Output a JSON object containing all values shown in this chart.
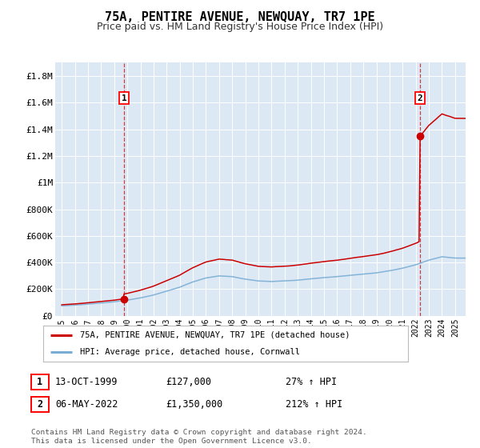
{
  "title": "75A, PENTIRE AVENUE, NEWQUAY, TR7 1PE",
  "subtitle": "Price paid vs. HM Land Registry's House Price Index (HPI)",
  "title_fontsize": 11,
  "subtitle_fontsize": 9,
  "fig_bg_color": "#ffffff",
  "plot_bg_color": "#dce9f5",
  "sale1_year": 1999.79,
  "sale1_price": 127000,
  "sale2_year": 2022.37,
  "sale2_price": 1350000,
  "ylim": [
    0,
    1900000
  ],
  "xlim_start": 1994.5,
  "xlim_end": 2025.8,
  "legend_label_red": "75A, PENTIRE AVENUE, NEWQUAY, TR7 1PE (detached house)",
  "legend_label_blue": "HPI: Average price, detached house, Cornwall",
  "annotation1_date": "13-OCT-1999",
  "annotation1_price": "£127,000",
  "annotation1_hpi": "27% ↑ HPI",
  "annotation2_date": "06-MAY-2022",
  "annotation2_price": "£1,350,000",
  "annotation2_hpi": "212% ↑ HPI",
  "footer": "Contains HM Land Registry data © Crown copyright and database right 2024.\nThis data is licensed under the Open Government Licence v3.0.",
  "red_color": "#cc0000",
  "blue_color": "#7aadd4",
  "grid_color": "#ffffff",
  "yticks": [
    0,
    200000,
    400000,
    600000,
    800000,
    1000000,
    1200000,
    1400000,
    1600000,
    1800000
  ],
  "ylabels": [
    "£0",
    "£200K",
    "£400K",
    "£600K",
    "£800K",
    "£1M",
    "£1.2M",
    "£1.4M",
    "£1.6M",
    "£1.8M"
  ]
}
